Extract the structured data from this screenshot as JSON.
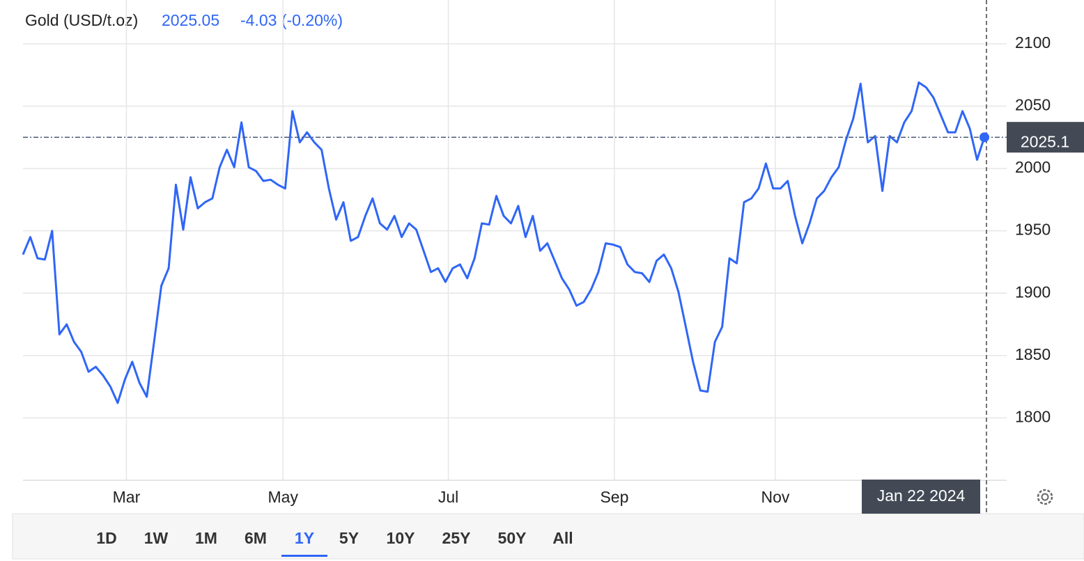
{
  "header": {
    "name": "Gold (USD/t.oz)",
    "price": "2025.05",
    "change": "-4.03 (-0.20%)"
  },
  "chart_data": {
    "type": "line",
    "current_label": "2025.1",
    "categories": [
      null,
      null,
      null,
      null,
      null,
      null,
      null,
      null,
      null,
      null,
      null,
      null,
      null,
      null,
      null,
      null,
      null,
      null,
      null,
      null,
      null,
      null,
      null,
      null,
      null,
      null,
      null,
      null,
      null,
      null,
      null,
      null,
      null,
      null,
      null,
      null,
      null,
      null,
      null,
      null,
      null,
      null,
      null,
      null,
      null,
      null,
      null,
      null,
      null,
      null,
      null,
      null,
      null,
      null,
      null,
      null,
      null,
      null,
      null,
      null,
      null,
      null,
      null,
      null,
      null,
      null,
      null,
      null,
      null,
      null,
      null,
      null,
      null,
      null,
      null,
      null,
      null,
      null,
      null,
      null,
      null,
      null,
      null,
      null,
      null,
      null,
      null,
      null,
      null,
      null,
      null,
      null,
      null,
      null,
      null,
      null,
      null,
      null,
      null,
      null,
      null,
      null,
      null,
      null,
      null,
      null,
      null,
      null,
      null,
      null,
      null,
      null,
      null,
      null,
      null,
      null,
      null,
      null,
      null,
      null,
      null,
      null,
      null,
      null,
      null,
      null,
      null,
      null,
      null,
      null,
      null,
      null,
      "Jan 22 2024"
    ],
    "series": [
      {
        "name": "Gold",
        "color": "#2f66f6",
        "values": [
          1931,
          1945,
          1928,
          1927,
          1950,
          1867,
          1875,
          1861,
          1853,
          1837,
          1841,
          1834,
          1825,
          1812,
          1831,
          1845,
          1828,
          1817,
          1861,
          1906,
          1920,
          1987,
          1951,
          1993,
          1968,
          1973,
          1976,
          2001,
          2015,
          2001,
          2037,
          2001,
          1998,
          1990,
          1991,
          1987,
          1984,
          2046,
          2021,
          2029,
          2021,
          2015,
          1984,
          1959,
          1973,
          1942,
          1945,
          1962,
          1976,
          1956,
          1951,
          1962,
          1945,
          1956,
          1951,
          1934,
          1917,
          1920,
          1909,
          1920,
          1923,
          1912,
          1928,
          1956,
          1955,
          1978,
          1962,
          1956,
          1970,
          1945,
          1962,
          1934,
          1940,
          1926,
          1912,
          1903,
          1890,
          1893,
          1903,
          1917,
          1940,
          1939,
          1937,
          1923,
          1917,
          1916,
          1909,
          1926,
          1931,
          1920,
          1901,
          1873,
          1845,
          1822,
          1821,
          1861,
          1873,
          1928,
          1924,
          1973,
          1976,
          1984,
          2004,
          1984,
          1984,
          1990,
          1962,
          1940,
          1956,
          1976,
          1982,
          1993,
          2001,
          2023,
          2040,
          2068,
          2021,
          2026,
          1982,
          2026,
          2021,
          2037,
          2046,
          2069,
          2065,
          2057,
          2043,
          2029,
          2029,
          2046,
          2032,
          2007,
          2025.05
        ]
      }
    ],
    "ylim": [
      1750,
      2110
    ],
    "yticks": [
      1800,
      1850,
      1900,
      1950,
      2000,
      2050,
      2100
    ],
    "xticks": [
      {
        "value": 14.2,
        "label": "Mar"
      },
      {
        "value": 35.7,
        "label": "May"
      },
      {
        "value": 58.4,
        "label": "Jul"
      },
      {
        "value": 81.2,
        "label": "Sep"
      },
      {
        "value": 103.3,
        "label": "Nov"
      }
    ],
    "grid": true
  },
  "ranges": {
    "items": [
      "1D",
      "1W",
      "1M",
      "6M",
      "1Y",
      "5Y",
      "10Y",
      "25Y",
      "50Y",
      "All"
    ],
    "active": 4
  }
}
